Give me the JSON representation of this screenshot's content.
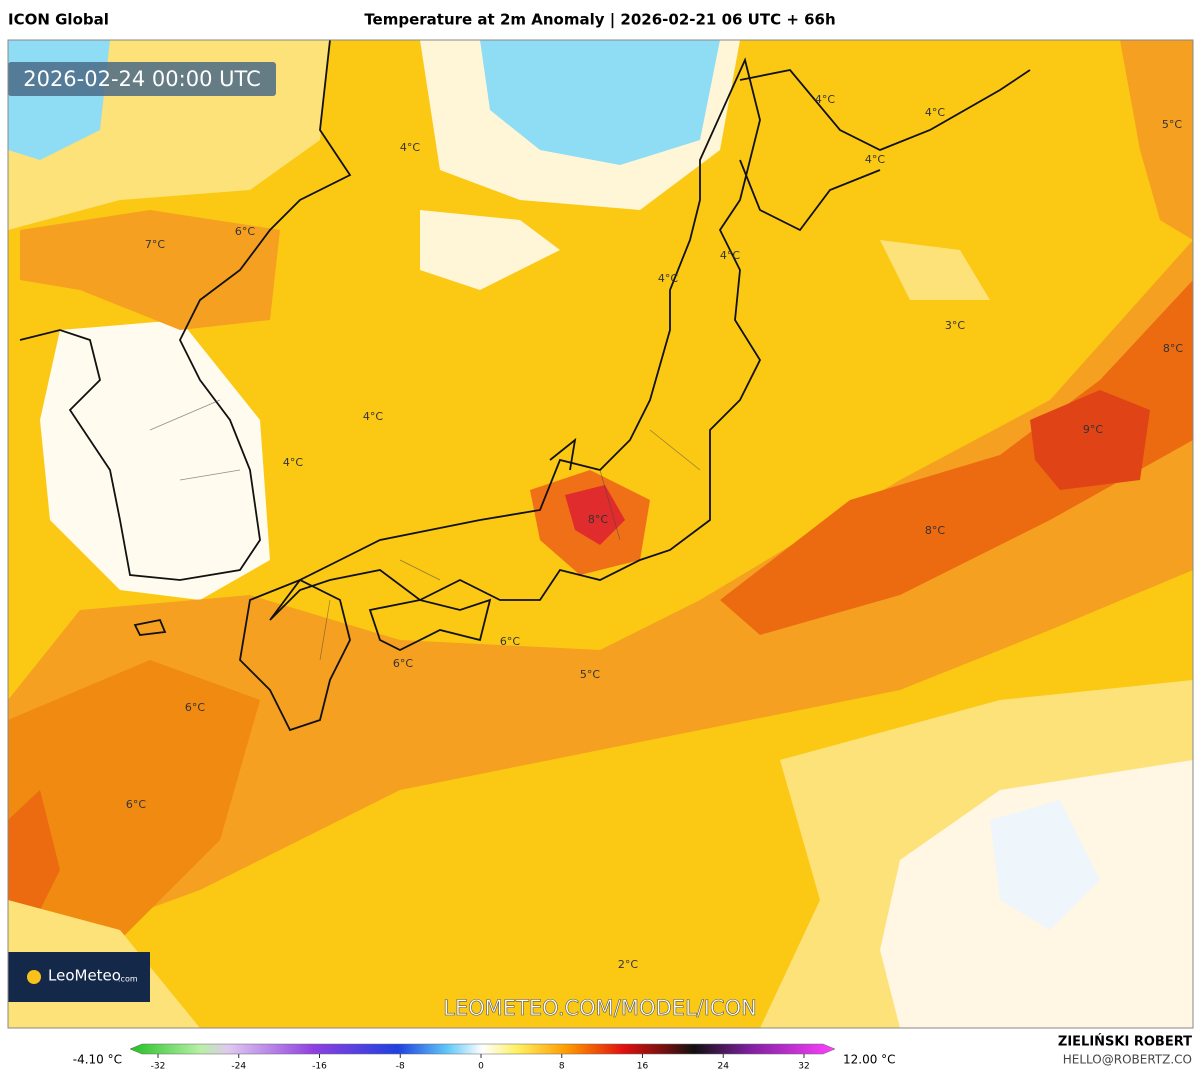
{
  "header": {
    "model": "ICON Global",
    "title": "Temperature at 2m Anomaly | 2026-02-21 06 UTC + 66h"
  },
  "map": {
    "valid_time": "2026-02-24 00:00 UTC",
    "labels": [
      "4°C",
      "4°C",
      "5°C",
      "4°C",
      "4°C",
      "7°C",
      "6°C",
      "4°C",
      "4°C",
      "3°C",
      "8°C",
      "4°C",
      "9°C",
      "4°C",
      "8°C",
      "8°C",
      "6°C",
      "6°C",
      "5°C",
      "6°C",
      "6°C",
      "2°C"
    ],
    "logo": {
      "name": "LeoMeteo",
      "suffix": ".com"
    },
    "watermark": "LEOMETEO.COM/MODEL/ICON"
  },
  "colorbar": {
    "min_label": "-4.10 °C",
    "max_label": "12.00 °C",
    "ticks": [
      -32,
      -24,
      -16,
      -8,
      0,
      8,
      16,
      24,
      32
    ]
  },
  "footer": {
    "author": "ZIELIŃSKI ROBERT",
    "email": "HELLO@ROBERTZ.CO"
  }
}
